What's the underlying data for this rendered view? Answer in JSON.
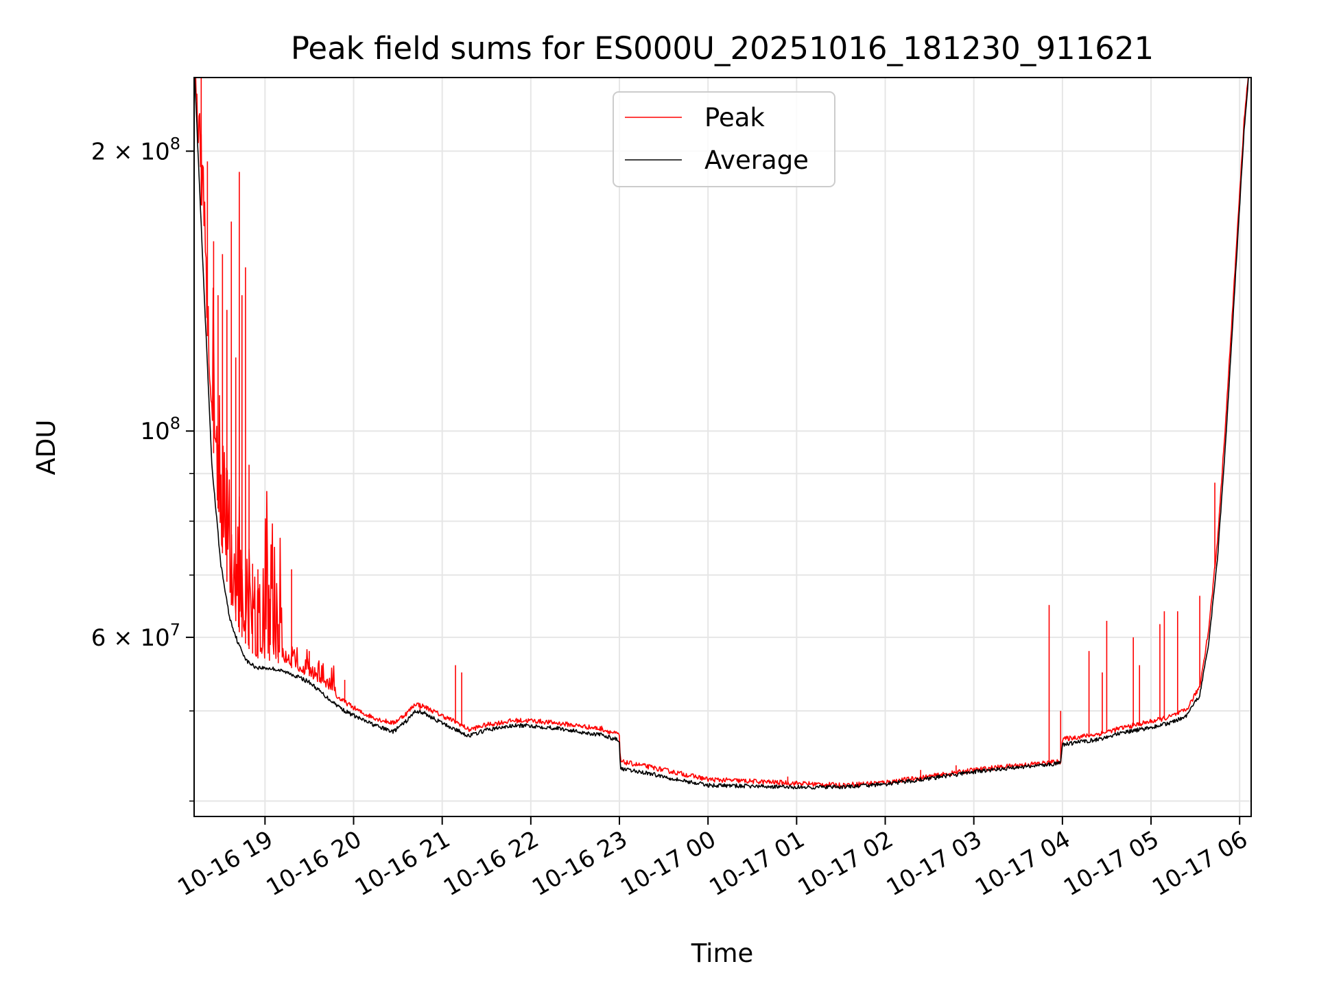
{
  "chart_data": {
    "type": "line",
    "title": "Peak field sums for ES000U_20251016_181230_911621",
    "xlabel": "Time",
    "ylabel": "ADU",
    "yscale": "log",
    "ylim": [
      38500000,
      240000000
    ],
    "xlim": [
      18.2,
      30.13
    ],
    "grid": true,
    "legend_position": "upper center",
    "x_ticks": [
      {
        "value": 19,
        "label": "10-16 19"
      },
      {
        "value": 20,
        "label": "10-16 20"
      },
      {
        "value": 21,
        "label": "10-16 21"
      },
      {
        "value": 22,
        "label": "10-16 22"
      },
      {
        "value": 23,
        "label": "10-16 23"
      },
      {
        "value": 24,
        "label": "10-17 00"
      },
      {
        "value": 25,
        "label": "10-17 01"
      },
      {
        "value": 26,
        "label": "10-17 02"
      },
      {
        "value": 27,
        "label": "10-17 03"
      },
      {
        "value": 28,
        "label": "10-17 04"
      },
      {
        "value": 29,
        "label": "10-17 05"
      },
      {
        "value": 30,
        "label": "10-17 06"
      }
    ],
    "y_major_ticks": [
      {
        "value": 60000000,
        "base": "6 × 10",
        "exp": "7"
      },
      {
        "value": 100000000,
        "base": "10",
        "exp": "8"
      },
      {
        "value": 200000000,
        "base": "2 × 10",
        "exp": "8"
      }
    ],
    "y_minor_ticks": [
      40000000,
      50000000,
      70000000,
      80000000,
      90000000,
      300000000
    ],
    "series": [
      {
        "name": "Peak",
        "color": "#ff0000",
        "baseline": {
          "x": [
            18.2,
            18.3,
            18.4,
            18.5,
            18.6,
            18.7,
            18.8,
            18.9,
            19.1,
            19.3,
            19.5,
            19.7,
            19.9,
            20.1,
            20.3,
            20.45,
            20.6,
            20.7,
            20.8,
            21.0,
            21.2,
            21.3,
            21.5,
            21.8,
            22.0,
            22.3,
            22.6,
            22.8,
            23.0,
            23.01,
            23.3,
            23.7,
            24.0,
            24.5,
            25.0,
            25.5,
            26.0,
            26.5,
            27.0,
            27.5,
            27.98,
            28.0,
            28.4,
            28.7,
            29.0,
            29.2,
            29.4,
            29.55,
            29.65,
            29.75,
            29.85,
            29.95,
            30.05,
            30.13
          ],
          "y": [
            250000000,
            160000000,
            100000000,
            76000000,
            66000000,
            61000000,
            58600000,
            57000000,
            56500000,
            55600000,
            54500000,
            52500000,
            51000000,
            49600000,
            48800000,
            48400000,
            49600000,
            50800000,
            50400000,
            49300000,
            48300000,
            47600000,
            48200000,
            48700000,
            48700000,
            48400000,
            48000000,
            47700000,
            47000000,
            44000000,
            43500000,
            42700000,
            42100000,
            41900000,
            41700000,
            41500000,
            41800000,
            42400000,
            43100000,
            43600000,
            44000000,
            46500000,
            47100000,
            47900000,
            48600000,
            49100000,
            50000000,
            53000000,
            61000000,
            76000000,
            105000000,
            150000000,
            215000000,
            260000000
          ]
        },
        "spikes": [
          {
            "x": 18.28,
            "y": 250000000
          },
          {
            "x": 18.35,
            "y": 195000000
          },
          {
            "x": 18.42,
            "y": 160000000
          },
          {
            "x": 18.47,
            "y": 140000000
          },
          {
            "x": 18.52,
            "y": 155000000
          },
          {
            "x": 18.57,
            "y": 135000000
          },
          {
            "x": 18.62,
            "y": 168000000
          },
          {
            "x": 18.67,
            "y": 120000000
          },
          {
            "x": 18.71,
            "y": 190000000
          },
          {
            "x": 18.74,
            "y": 140000000
          },
          {
            "x": 18.78,
            "y": 150000000
          },
          {
            "x": 18.82,
            "y": 92000000
          },
          {
            "x": 18.86,
            "y": 72000000
          },
          {
            "x": 18.92,
            "y": 71000000
          },
          {
            "x": 19.05,
            "y": 66000000
          },
          {
            "x": 19.15,
            "y": 62000000
          },
          {
            "x": 19.3,
            "y": 71000000
          },
          {
            "x": 19.5,
            "y": 58000000
          },
          {
            "x": 19.9,
            "y": 54000000
          },
          {
            "x": 20.75,
            "y": 50000000
          },
          {
            "x": 21.15,
            "y": 56000000
          },
          {
            "x": 21.22,
            "y": 55000000
          },
          {
            "x": 22.8,
            "y": 48200000
          },
          {
            "x": 24.9,
            "y": 42500000
          },
          {
            "x": 26.4,
            "y": 43200000
          },
          {
            "x": 26.8,
            "y": 43700000
          },
          {
            "x": 27.85,
            "y": 65000000
          },
          {
            "x": 27.98,
            "y": 50000000
          },
          {
            "x": 28.3,
            "y": 58000000
          },
          {
            "x": 28.45,
            "y": 55000000
          },
          {
            "x": 28.5,
            "y": 62500000
          },
          {
            "x": 28.8,
            "y": 60000000
          },
          {
            "x": 28.87,
            "y": 56000000
          },
          {
            "x": 29.1,
            "y": 62000000
          },
          {
            "x": 29.15,
            "y": 64000000
          },
          {
            "x": 29.3,
            "y": 64000000
          },
          {
            "x": 29.55,
            "y": 66500000
          },
          {
            "x": 29.72,
            "y": 88000000
          }
        ]
      },
      {
        "name": "Average",
        "color": "#000000",
        "x": [
          18.2,
          18.3,
          18.4,
          18.5,
          18.6,
          18.7,
          18.8,
          18.9,
          19.1,
          19.3,
          19.5,
          19.7,
          19.9,
          20.1,
          20.3,
          20.45,
          20.6,
          20.7,
          20.8,
          21.0,
          21.2,
          21.3,
          21.5,
          21.8,
          22.0,
          22.3,
          22.6,
          22.8,
          23.0,
          23.01,
          23.3,
          23.7,
          24.0,
          24.5,
          25.0,
          25.5,
          26.0,
          26.5,
          27.0,
          27.5,
          27.98,
          28.0,
          28.4,
          28.7,
          29.0,
          29.2,
          29.4,
          29.55,
          29.65,
          29.75,
          29.85,
          29.95,
          30.05,
          30.13
        ],
        "y": [
          250000000,
          150000000,
          92000000,
          72000000,
          63000000,
          59000000,
          56500000,
          55700000,
          55500000,
          54800000,
          53700000,
          51700000,
          50000000,
          48900000,
          48000000,
          47500000,
          48800000,
          50000000,
          49700000,
          48500000,
          47500000,
          47000000,
          47700000,
          48200000,
          48200000,
          47900000,
          47400000,
          47100000,
          46500000,
          43300000,
          42900000,
          42100000,
          41600000,
          41500000,
          41400000,
          41400000,
          41700000,
          42300000,
          43000000,
          43500000,
          43900000,
          46000000,
          46600000,
          47400000,
          48000000,
          48500000,
          49300000,
          52000000,
          59000000,
          73000000,
          100000000,
          145000000,
          210000000,
          260000000
        ]
      }
    ],
    "legend": [
      {
        "label": "Peak",
        "color": "#ff0000"
      },
      {
        "label": "Average",
        "color": "#000000"
      }
    ]
  }
}
